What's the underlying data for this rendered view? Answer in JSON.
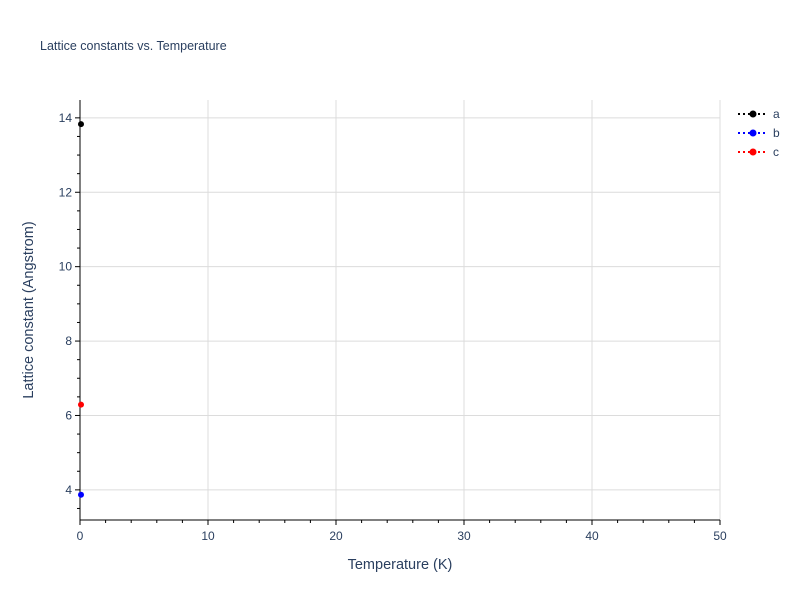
{
  "chart_data": {
    "type": "scatter",
    "title": "Lattice constants vs. Temperature",
    "xlabel": "Temperature (K)",
    "ylabel": "Lattice constant (Angstrom)",
    "xlim": [
      0,
      50
    ],
    "ylim": [
      3.19,
      14.48
    ],
    "xticks": [
      0,
      10,
      20,
      30,
      40,
      50
    ],
    "yticks": [
      4,
      6,
      8,
      10,
      12,
      14
    ],
    "grid": true,
    "legend_placement": "top-right",
    "series": [
      {
        "name": "a",
        "color": "#000000",
        "line": "dotted",
        "x": [
          0
        ],
        "y": [
          13.83
        ]
      },
      {
        "name": "b",
        "color": "#0000ff",
        "line": "dotted",
        "x": [
          0
        ],
        "y": [
          3.87
        ]
      },
      {
        "name": "c",
        "color": "#ff0000",
        "line": "dotted",
        "x": [
          0
        ],
        "y": [
          6.29
        ]
      }
    ]
  }
}
